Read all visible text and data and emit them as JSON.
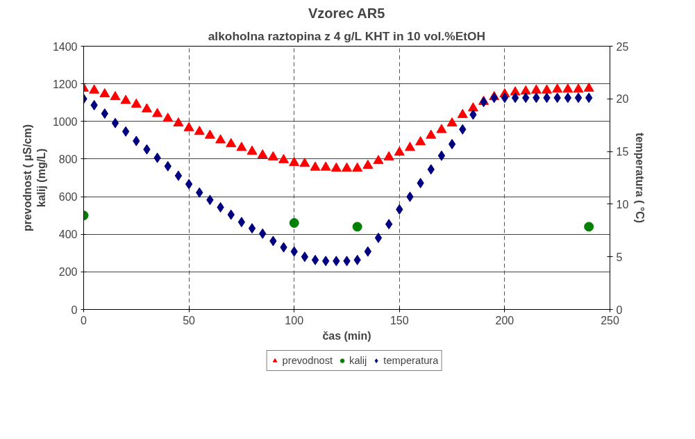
{
  "chart_data": {
    "type": "scatter",
    "title": "Vzorec AR5",
    "subtitle": "alkoholna raztopina z 4 g/L KHT in 10 vol.%EtOH",
    "xlabel": "čas (min)",
    "ylabel": "prevodnost ( µS/cm)\nkalij (mg/L)",
    "y2label": "temperatura ( °C)",
    "xlim": [
      0,
      250
    ],
    "xticks": [
      0,
      50,
      100,
      150,
      200,
      250
    ],
    "ylim": [
      0,
      1400
    ],
    "yticks": [
      0,
      200,
      400,
      600,
      800,
      1000,
      1200,
      1400
    ],
    "y2lim": [
      0,
      25
    ],
    "y2ticks": [
      0,
      5,
      10,
      15,
      20,
      25
    ],
    "grid": true,
    "legend": "bottom",
    "series": [
      {
        "name": "prevodnost",
        "color": "#ff0000",
        "marker": "triangle",
        "x": [
          0,
          5,
          10,
          15,
          20,
          25,
          30,
          35,
          40,
          45,
          50,
          55,
          60,
          65,
          70,
          75,
          80,
          85,
          90,
          95,
          100,
          105,
          110,
          115,
          120,
          125,
          130,
          135,
          140,
          145,
          150,
          155,
          160,
          165,
          170,
          175,
          180,
          185,
          190,
          195,
          200,
          205,
          210,
          215,
          220,
          225,
          230,
          235,
          240
        ],
        "values": [
          1175,
          1165,
          1145,
          1130,
          1110,
          1090,
          1065,
          1040,
          1015,
          990,
          965,
          945,
          925,
          900,
          880,
          860,
          840,
          820,
          810,
          795,
          780,
          775,
          755,
          755,
          750,
          750,
          750,
          765,
          790,
          810,
          835,
          860,
          890,
          925,
          955,
          990,
          1035,
          1070,
          1105,
          1130,
          1145,
          1155,
          1160,
          1165,
          1165,
          1170,
          1170,
          1170,
          1175
        ]
      },
      {
        "name": "kalij",
        "color": "#008000",
        "marker": "circle",
        "x": [
          0,
          100,
          130,
          240
        ],
        "values": [
          500,
          460,
          440,
          440
        ]
      },
      {
        "name": "temperatura",
        "color": "#000080",
        "marker": "diamond",
        "axis": "y2",
        "x": [
          0,
          5,
          10,
          15,
          20,
          25,
          30,
          35,
          40,
          45,
          50,
          55,
          60,
          65,
          70,
          75,
          80,
          85,
          90,
          95,
          100,
          105,
          110,
          115,
          120,
          125,
          130,
          135,
          140,
          145,
          150,
          155,
          160,
          165,
          170,
          175,
          180,
          185,
          190,
          195,
          200,
          205,
          210,
          215,
          220,
          225,
          230,
          235,
          240
        ],
        "values": [
          20.0,
          19.4,
          18.6,
          17.7,
          16.9,
          16.0,
          15.2,
          14.4,
          13.6,
          12.7,
          11.9,
          11.1,
          10.4,
          9.7,
          9.0,
          8.3,
          7.7,
          7.2,
          6.5,
          5.9,
          5.5,
          5.0,
          4.7,
          4.6,
          4.6,
          4.6,
          4.7,
          5.5,
          6.8,
          8.1,
          9.5,
          10.7,
          12.0,
          13.3,
          14.6,
          15.7,
          17.1,
          18.5,
          19.7,
          20.1,
          20.1,
          20.1,
          20.1,
          20.1,
          20.1,
          20.1,
          20.1,
          20.1,
          20.1
        ]
      }
    ]
  }
}
